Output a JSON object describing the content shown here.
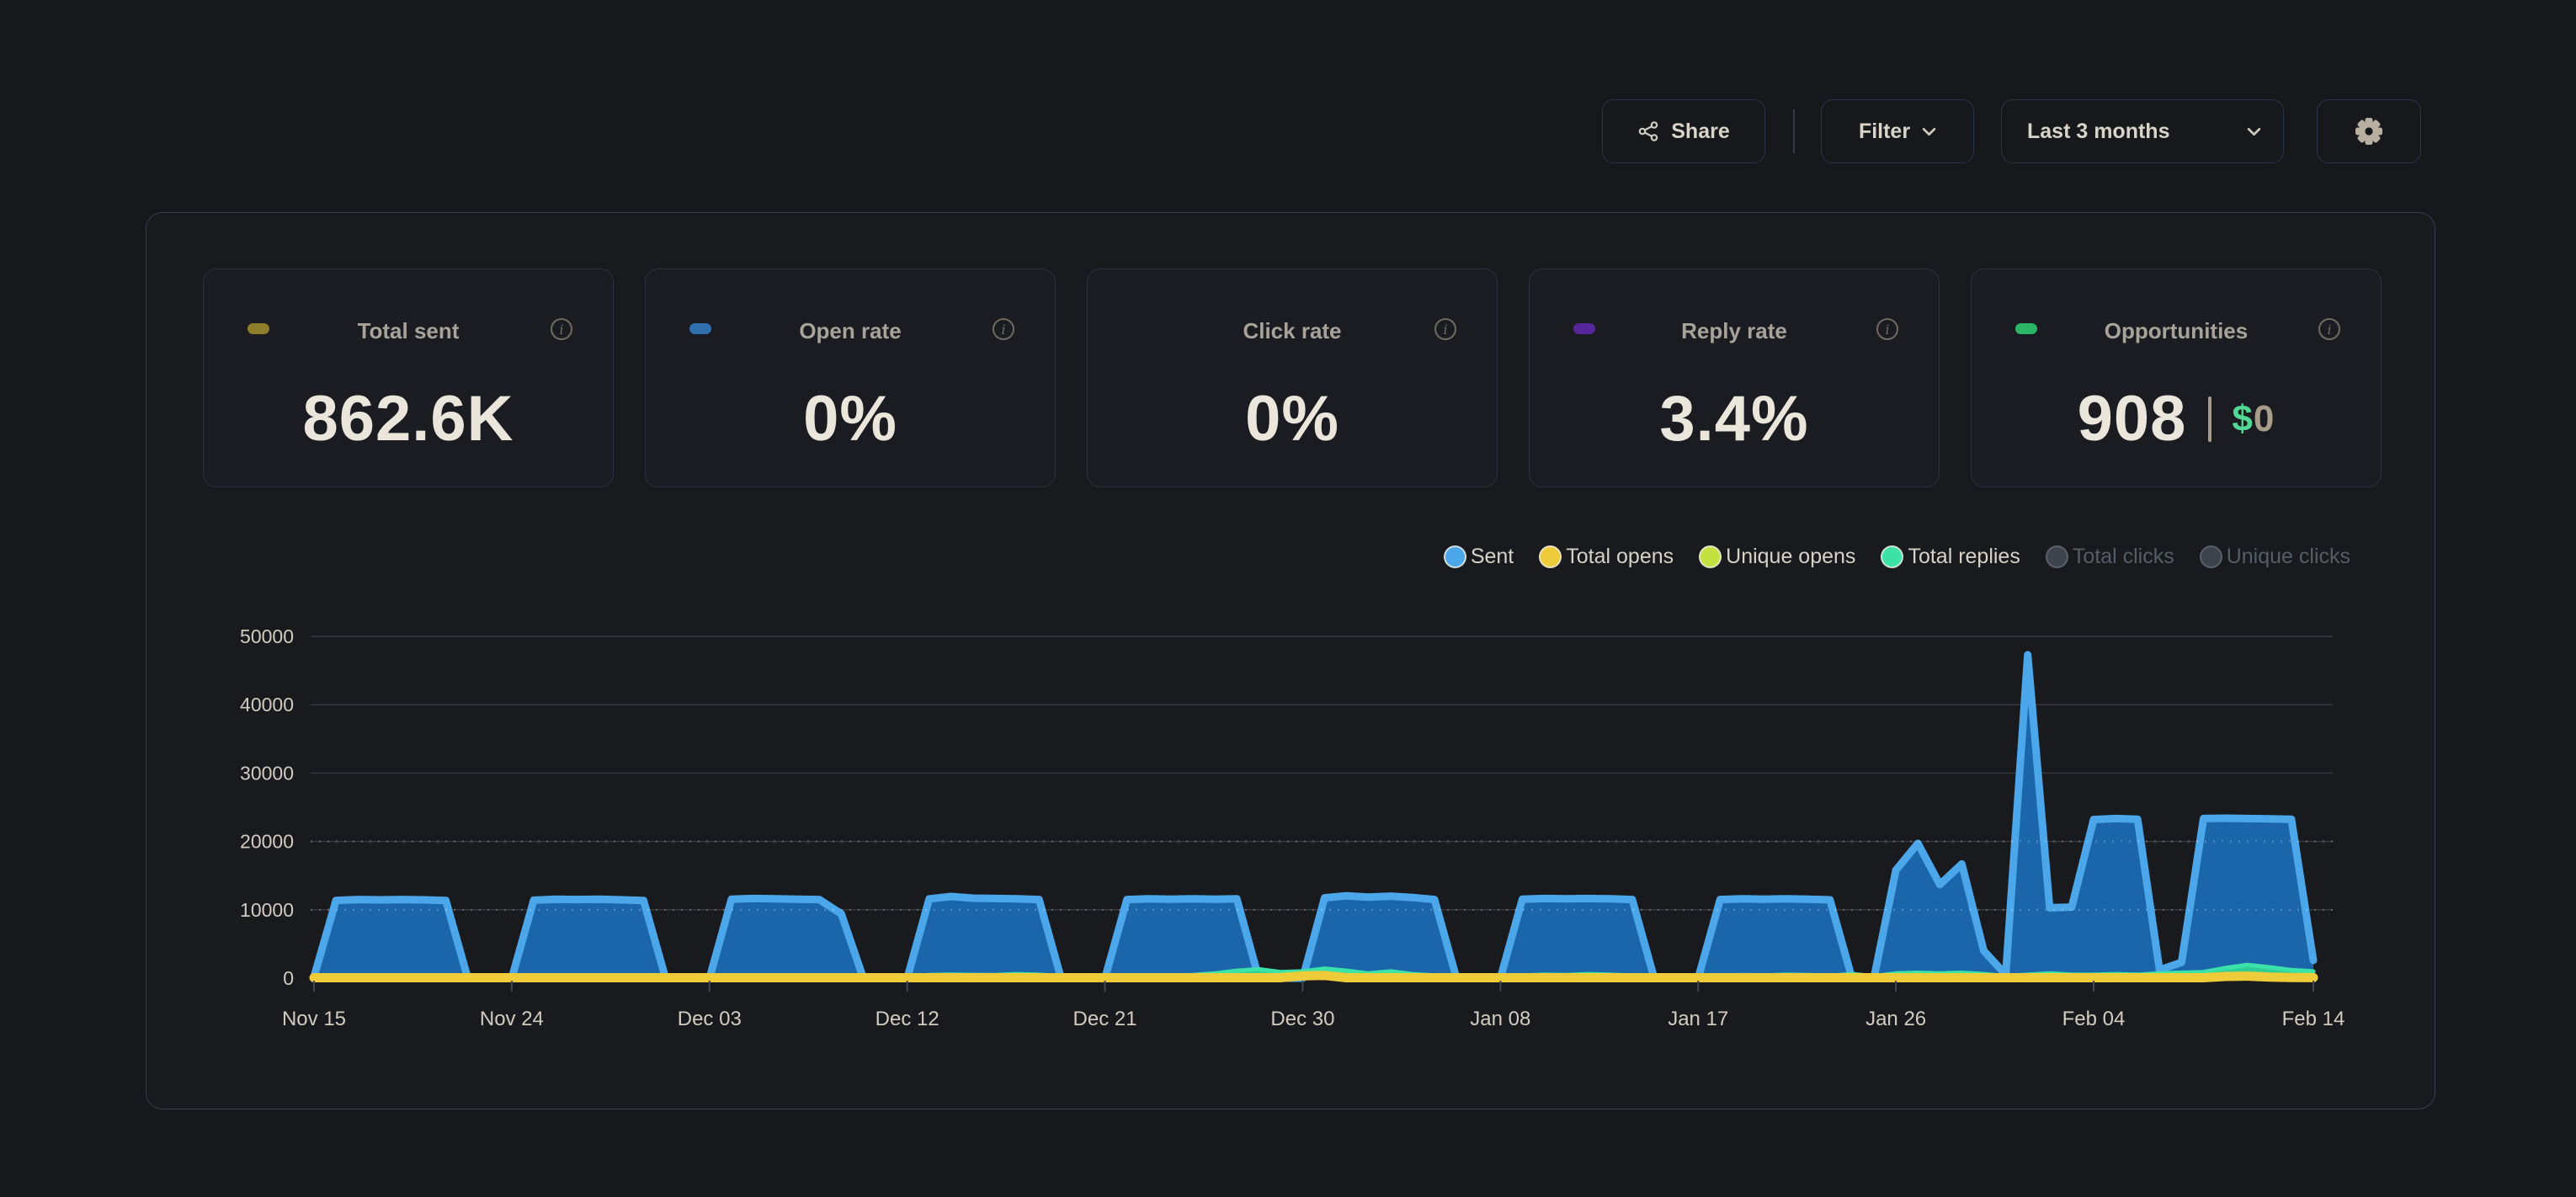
{
  "header": {
    "share_label": "Share",
    "filter_label": "Filter",
    "date_range_label": "Last 3 months"
  },
  "stats": [
    {
      "label": "Total sent",
      "value": "862.6K",
      "pill_color": "#8e7d2b"
    },
    {
      "label": "Open rate",
      "value": "0%",
      "pill_color": "#2f6fae"
    },
    {
      "label": "Click rate",
      "value": "0%",
      "pill_color": null
    },
    {
      "label": "Reply rate",
      "value": "3.4%",
      "pill_color": "#55279b"
    },
    {
      "label": "Opportunities",
      "value": "908",
      "pill_color": "#2db567",
      "secondary": {
        "symbol": "$",
        "amount": "0"
      }
    }
  ],
  "colors": {
    "background": "#17181b",
    "panel_border": "#373d50",
    "card_border": "#2b3140",
    "axis_text": "#d2ccc0",
    "grid_line": "#35393f",
    "accent_green": "#52d796"
  },
  "chart_data": {
    "type": "area",
    "title": "",
    "xlabel": "",
    "ylabel": "",
    "days": 92,
    "ylim": [
      0,
      50000
    ],
    "grid": true,
    "legend_position": "top-right",
    "y_ticks": [
      0,
      10000,
      20000,
      30000,
      40000,
      50000
    ],
    "x_labels": [
      "Nov 15",
      "Nov 24",
      "Dec 03",
      "Dec 12",
      "Dec 21",
      "Dec 30",
      "Jan 08",
      "Jan 17",
      "Jan 26",
      "Feb 04",
      "Feb 14"
    ],
    "x_label_days": [
      0,
      9,
      18,
      27,
      36,
      45,
      54,
      63,
      72,
      81,
      91
    ],
    "series": [
      {
        "name": "Sent",
        "color": "#4ba7ea",
        "fill": "#1b66aa",
        "active": true,
        "values": [
          200,
          11350,
          11500,
          11450,
          11500,
          11450,
          11350,
          0,
          0,
          0,
          11400,
          11550,
          11500,
          11550,
          11450,
          11350,
          0,
          0,
          0,
          11550,
          11650,
          11600,
          11550,
          11500,
          9400,
          0,
          0,
          0,
          11600,
          11950,
          11700,
          11650,
          11600,
          11500,
          0,
          0,
          0,
          11500,
          11600,
          11550,
          11600,
          11550,
          11600,
          0,
          0,
          0,
          11750,
          12050,
          11850,
          12000,
          11800,
          11500,
          0,
          0,
          0,
          11550,
          11650,
          11600,
          11650,
          11600,
          11500,
          0,
          0,
          0,
          11500,
          11600,
          11550,
          11600,
          11550,
          11450,
          0,
          0,
          15800,
          19700,
          13700,
          16700,
          4000,
          500,
          47300,
          10300,
          10400,
          23200,
          23350,
          23250,
          1200,
          2300,
          23350,
          23400,
          23350,
          23300,
          23250,
          2600
        ]
      },
      {
        "name": "Total opens",
        "color": "#eecb39",
        "active": true,
        "values": [
          60,
          60,
          60,
          60,
          60,
          60,
          60,
          60,
          60,
          60,
          60,
          60,
          60,
          60,
          60,
          60,
          60,
          60,
          60,
          60,
          60,
          60,
          60,
          60,
          60,
          60,
          60,
          60,
          60,
          60,
          60,
          60,
          60,
          60,
          60,
          60,
          60,
          60,
          60,
          60,
          60,
          60,
          60,
          60,
          60,
          350,
          400,
          60,
          60,
          60,
          60,
          60,
          60,
          60,
          60,
          60,
          60,
          60,
          60,
          60,
          60,
          60,
          60,
          60,
          60,
          60,
          60,
          60,
          60,
          60,
          60,
          60,
          60,
          60,
          60,
          60,
          60,
          60,
          60,
          60,
          60,
          60,
          60,
          60,
          60,
          60,
          60,
          250,
          300,
          150,
          100,
          80
        ]
      },
      {
        "name": "Unique opens",
        "color": "#c3e23f",
        "active": true,
        "values": [
          90,
          90,
          90,
          90,
          90,
          90,
          90,
          90,
          90,
          90,
          90,
          90,
          90,
          90,
          90,
          90,
          90,
          90,
          90,
          90,
          90,
          90,
          90,
          90,
          90,
          90,
          90,
          90,
          90,
          90,
          90,
          90,
          90,
          90,
          90,
          90,
          90,
          90,
          90,
          90,
          90,
          90,
          90,
          90,
          400,
          600,
          500,
          300,
          90,
          90,
          90,
          90,
          90,
          90,
          90,
          90,
          90,
          90,
          90,
          90,
          90,
          90,
          90,
          90,
          90,
          90,
          90,
          90,
          90,
          90,
          90,
          90,
          90,
          90,
          90,
          90,
          90,
          90,
          90,
          90,
          90,
          90,
          90,
          90,
          90,
          90,
          90,
          90,
          90,
          90,
          90,
          90
        ]
      },
      {
        "name": "Total replies",
        "color": "#3be3a9",
        "fill": "#2fce97",
        "active": true,
        "values": [
          250,
          300,
          300,
          280,
          300,
          280,
          300,
          250,
          250,
          250,
          300,
          320,
          300,
          320,
          300,
          300,
          250,
          250,
          250,
          400,
          420,
          400,
          420,
          400,
          380,
          250,
          250,
          250,
          450,
          520,
          480,
          450,
          600,
          500,
          300,
          280,
          260,
          350,
          400,
          380,
          450,
          700,
          1100,
          1300,
          900,
          1000,
          1400,
          1100,
          700,
          1000,
          600,
          400,
          300,
          280,
          260,
          400,
          500,
          450,
          600,
          500,
          400,
          300,
          280,
          260,
          350,
          450,
          400,
          500,
          450,
          350,
          600,
          300,
          700,
          800,
          700,
          800,
          600,
          300,
          500,
          700,
          500,
          500,
          600,
          500,
          700,
          800,
          900,
          1500,
          1950,
          1600,
          1200,
          1000
        ]
      },
      {
        "name": "Total clicks",
        "color": "#3d444e",
        "active": false
      },
      {
        "name": "Unique clicks",
        "color": "#3d444e",
        "active": false
      }
    ]
  }
}
